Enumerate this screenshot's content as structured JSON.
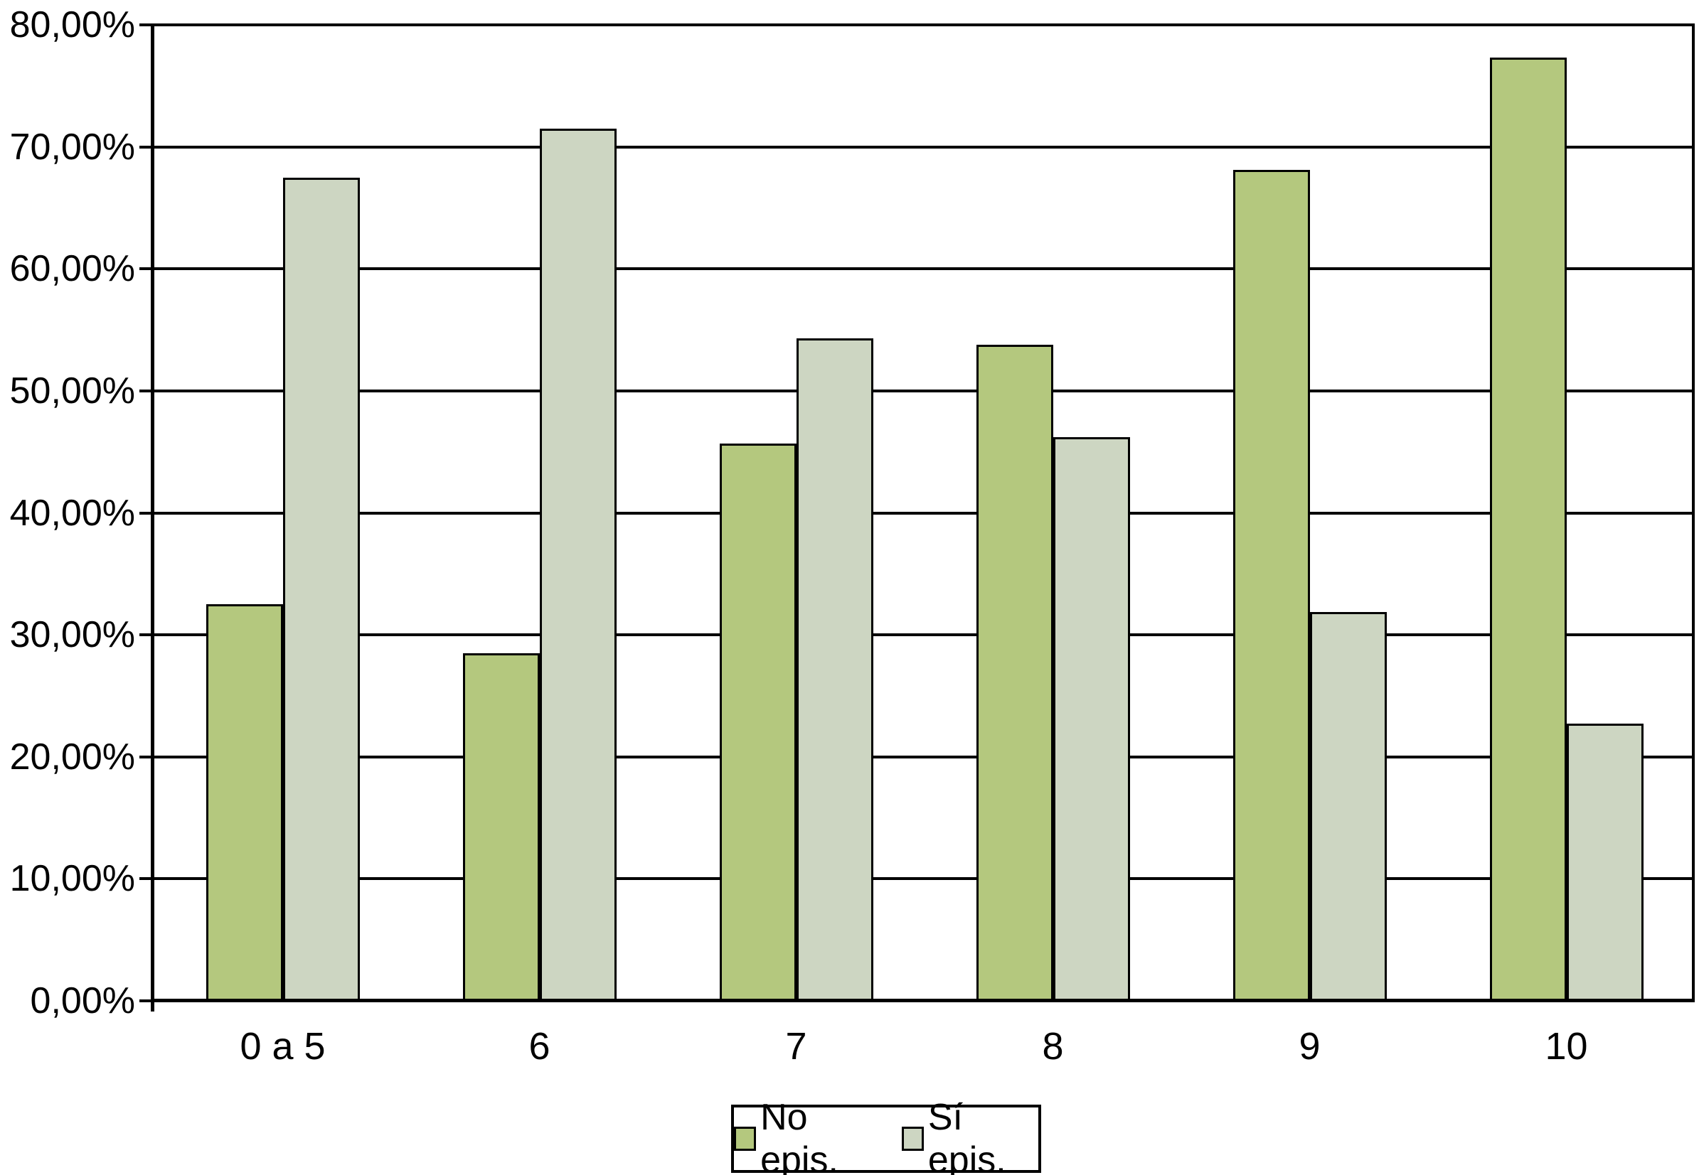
{
  "chart_data": {
    "type": "bar",
    "title": "",
    "xlabel": "",
    "ylabel": "",
    "categories": [
      "0 a 5",
      "6",
      "7",
      "8",
      "9",
      "10"
    ],
    "series": [
      {
        "name": "No epis.",
        "color": "#b4c87e",
        "values": [
          32.5,
          28.5,
          45.7,
          53.8,
          68.1,
          77.3
        ]
      },
      {
        "name": "Sí epis.",
        "color": "#cdd6c2",
        "values": [
          67.5,
          71.5,
          54.3,
          46.2,
          31.9,
          22.7
        ]
      }
    ],
    "ylim": [
      0,
      80
    ],
    "ytick_step": 10,
    "ytick_labels": [
      "0,00%",
      "10,00%",
      "20,00%",
      "30,00%",
      "40,00%",
      "50,00%",
      "60,00%",
      "70,00%",
      "80,00%"
    ],
    "grid": true,
    "gridline_color": "#000000",
    "axis_color": "#000000",
    "bar_border_color": "#000000",
    "legend_position": "bottom-center",
    "background_color": "#ffffff"
  }
}
